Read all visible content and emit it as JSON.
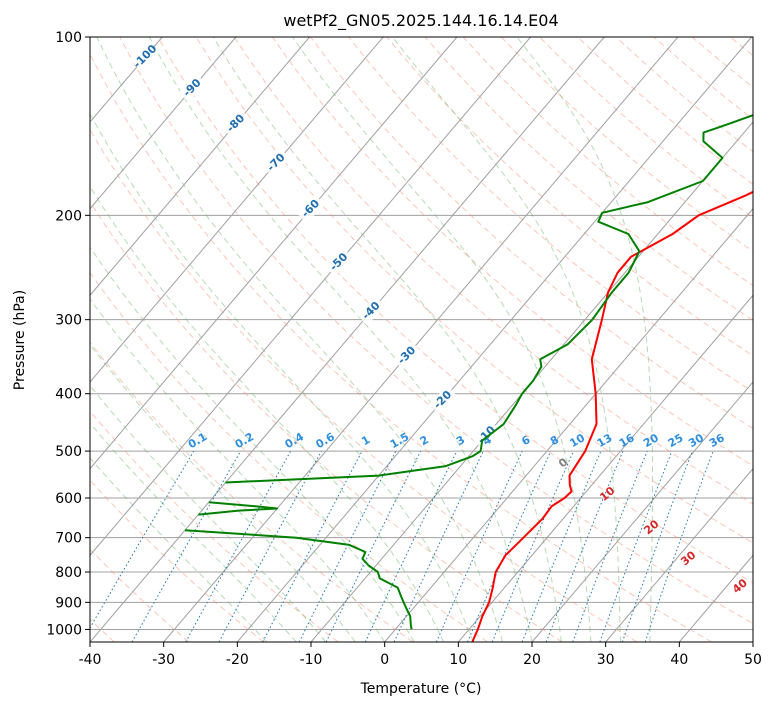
{
  "chart_data": {
    "type": "line",
    "diagram": "skew-T log-p",
    "title": "wetPf2_GN05.2025.144.16.14.E04",
    "xlabel": "Temperature (°C)",
    "ylabel": "Pressure (hPa)",
    "xlim": [
      -40,
      50
    ],
    "ylim": [
      1050,
      100
    ],
    "yscale": "log",
    "x_ticks": [
      -40,
      -30,
      -20,
      -10,
      0,
      10,
      20,
      30,
      40,
      50
    ],
    "y_ticks": [
      100,
      200,
      300,
      400,
      500,
      600,
      700,
      800,
      900,
      1000
    ],
    "grid": true,
    "series": [
      {
        "kind": "temperature",
        "color": "#ff0000",
        "points": [
          [
            1050,
            11.9
          ],
          [
            1000,
            11.2
          ],
          [
            950,
            10.3
          ],
          [
            900,
            9.6
          ],
          [
            850,
            8.4
          ],
          [
            800,
            7.0
          ],
          [
            750,
            6.4
          ],
          [
            700,
            6.8
          ],
          [
            650,
            7.2
          ],
          [
            620,
            7.0
          ],
          [
            600,
            7.8
          ],
          [
            585,
            8.0
          ],
          [
            570,
            7.0
          ],
          [
            550,
            5.9
          ],
          [
            500,
            5.2
          ],
          [
            450,
            3.6
          ],
          [
            400,
            0.0
          ],
          [
            350,
            -4.5
          ],
          [
            300,
            -7.7
          ],
          [
            270,
            -10.0
          ],
          [
            250,
            -11.0
          ],
          [
            235,
            -11.0
          ],
          [
            215,
            -8.0
          ],
          [
            200,
            -6.6
          ],
          [
            185,
            -2.5
          ],
          [
            170,
            1.0
          ],
          [
            155,
            6.5
          ],
          [
            140,
            10.8
          ],
          [
            130,
            12.8
          ],
          [
            122,
            16.0
          ],
          [
            115,
            19.0
          ],
          [
            105,
            22.0
          ],
          [
            100,
            23.0
          ]
        ]
      },
      {
        "kind": "dewpoint",
        "color": "#008000",
        "points": [
          [
            1000,
            2.2
          ],
          [
            980,
            1.5
          ],
          [
            950,
            0.5
          ],
          [
            920,
            -1.0
          ],
          [
            900,
            -2.0
          ],
          [
            880,
            -3.0
          ],
          [
            850,
            -4.5
          ],
          [
            820,
            -8.0
          ],
          [
            800,
            -9.0
          ],
          [
            780,
            -11.0
          ],
          [
            760,
            -12.6
          ],
          [
            740,
            -13.0
          ],
          [
            720,
            -16.0
          ],
          [
            700,
            -24.0
          ],
          [
            680,
            -40.0
          ]
        ],
        "dry_segments": [
          [
            [
              640,
              -40.0
            ],
            [
              630,
              -35.0
            ],
            [
              625,
              -30.0
            ],
            [
              620,
              -33.0
            ],
            [
              610,
              -40.0
            ]
          ],
          [
            [
              565,
              -40.0
            ],
            [
              550,
              -20.0
            ],
            [
              530,
              -12.0
            ],
            [
              510,
              -9.5
            ],
            [
              500,
              -9.0
            ],
            [
              480,
              -10.0
            ],
            [
              450,
              -9.0
            ],
            [
              420,
              -9.5
            ],
            [
              400,
              -10.0
            ],
            [
              380,
              -10.0
            ],
            [
              360,
              -10.5
            ],
            [
              350,
              -11.5
            ],
            [
              330,
              -9.5
            ],
            [
              300,
              -9.0
            ],
            [
              270,
              -9.5
            ],
            [
              250,
              -9.5
            ],
            [
              230,
              -10.5
            ],
            [
              215,
              -14.0
            ],
            [
              205,
              -19.5
            ],
            [
              198,
              -20.0
            ],
            [
              190,
              -15.0
            ],
            [
              175,
              -10.0
            ],
            [
              160,
              -10.0
            ],
            [
              150,
              -14.5
            ],
            [
              145,
              -15.5
            ],
            [
              140,
              -13.0
            ],
            [
              130,
              -8.0
            ],
            [
              120,
              -7.0
            ],
            [
              115,
              -8.0
            ],
            [
              105,
              -7.0
            ],
            [
              100,
              -2.0
            ]
          ]
        ]
      }
    ],
    "dry_adiabat_labels": [
      "-100",
      "-90",
      "-80",
      "-70",
      "-60",
      "-50",
      "-40",
      "-30",
      "-20",
      "-10"
    ],
    "mixing_ratio_labels": [
      "0.1",
      "0.2",
      "0.4",
      "0.6",
      "1",
      "1.5",
      "2",
      "3",
      "4",
      "6",
      "8",
      "10",
      "13",
      "16",
      "20",
      "25",
      "30",
      "36"
    ],
    "moist_adiabat_labels": [
      "0",
      "10",
      "20",
      "30",
      "40"
    ],
    "colors": {
      "isotherm": "#a0a0a0",
      "dry_adiabat": "#ff8060",
      "moist_adiabat": "#60b060",
      "mixing_ratio": "#1f77b4",
      "theta_label": "#1f6fb0",
      "mixing_label": "#2f8fdf",
      "moist_label": "#d62728",
      "zero_label": "#808080"
    }
  }
}
